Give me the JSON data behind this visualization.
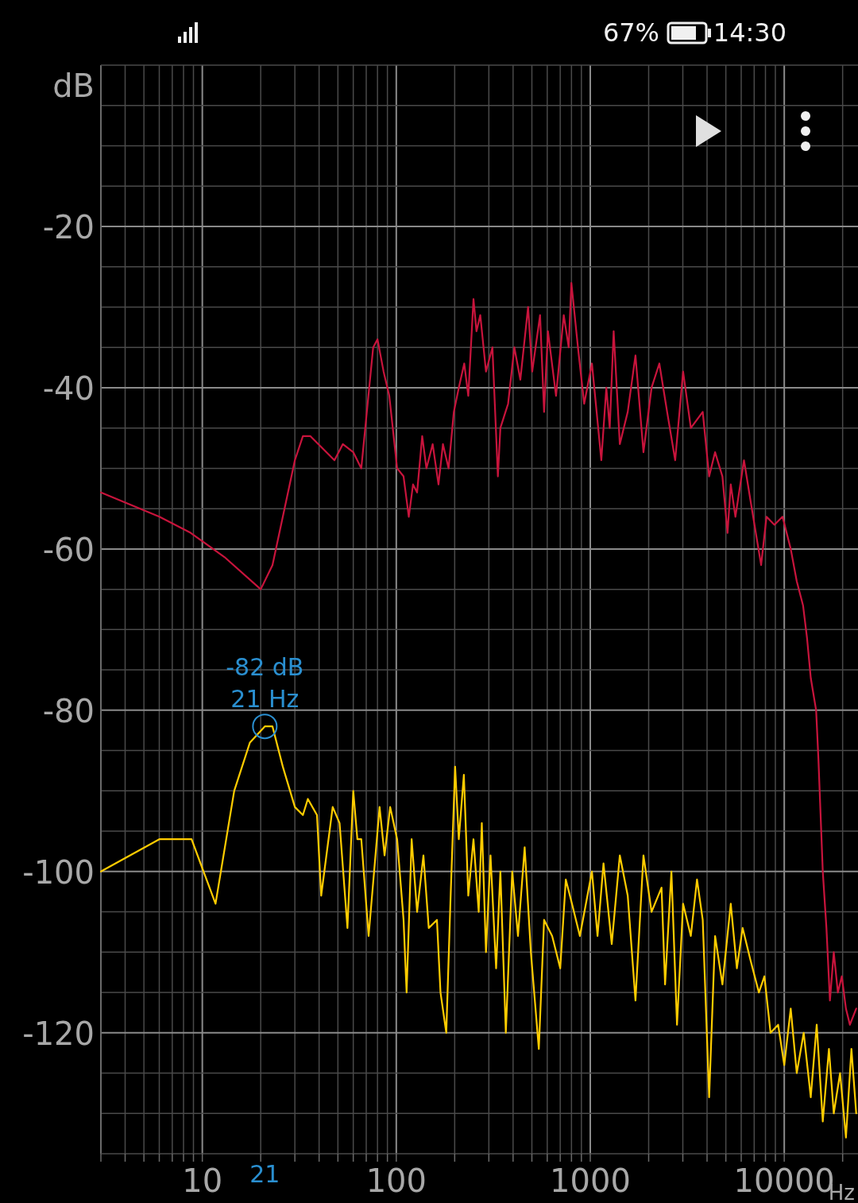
{
  "chart_data": {
    "type": "line",
    "xlabel": "Hz",
    "ylabel": "dB",
    "log": "x",
    "grid": true,
    "marker": "none",
    "line_style": "solid",
    "xlim": [
      3,
      24000
    ],
    "ylim": [
      -135,
      0
    ],
    "xticks": [
      {
        "value": 3,
        "label": null
      },
      {
        "value": 4,
        "label": null
      },
      {
        "value": 5,
        "label": null
      },
      {
        "value": 6,
        "label": null
      },
      {
        "value": 7,
        "label": null
      },
      {
        "value": 8,
        "label": null
      },
      {
        "value": 9,
        "label": null
      },
      10,
      {
        "value": 20,
        "label": null
      },
      {
        "value": 30,
        "label": null
      },
      {
        "value": 40,
        "label": null
      },
      {
        "value": 50,
        "label": null
      },
      {
        "value": 60,
        "label": null
      },
      {
        "value": 70,
        "label": null
      },
      {
        "value": 80,
        "label": null
      },
      {
        "value": 90,
        "label": null
      },
      100,
      {
        "value": 200,
        "label": null
      },
      {
        "value": 300,
        "label": null
      },
      {
        "value": 400,
        "label": null
      },
      {
        "value": 500,
        "label": null
      },
      {
        "value": 600,
        "label": null
      },
      {
        "value": 700,
        "label": null
      },
      {
        "value": 800,
        "label": null
      },
      {
        "value": 900,
        "label": null
      },
      1000,
      {
        "value": 2000,
        "label": null
      },
      {
        "value": 3000,
        "label": null
      },
      {
        "value": 4000,
        "label": null
      },
      {
        "value": 5000,
        "label": null
      },
      {
        "value": 6000,
        "label": null
      },
      {
        "value": 7000,
        "label": null
      },
      {
        "value": 8000,
        "label": null
      },
      {
        "value": 9000,
        "label": null
      },
      10000,
      {
        "value": 20000,
        "label": null
      }
    ],
    "yticks": [
      {
        "value": -5,
        "label": null
      },
      {
        "value": -10,
        "label": null
      },
      {
        "value": -15,
        "label": null
      },
      -20,
      {
        "value": -25,
        "label": null
      },
      {
        "value": -30,
        "label": null
      },
      {
        "value": -35,
        "label": null
      },
      -40,
      {
        "value": -45,
        "label": null
      },
      {
        "value": -50,
        "label": null
      },
      {
        "value": -55,
        "label": null
      },
      -60,
      {
        "value": -65,
        "label": null
      },
      {
        "value": -70,
        "label": null
      },
      {
        "value": -75,
        "label": null
      },
      -80,
      {
        "value": -85,
        "label": null
      },
      {
        "value": -90,
        "label": null
      },
      {
        "value": -95,
        "label": null
      },
      -100,
      {
        "value": -105,
        "label": null
      },
      {
        "value": -110,
        "label": null
      },
      {
        "value": -115,
        "label": null
      },
      -120,
      {
        "value": -125,
        "label": null
      },
      {
        "value": -130,
        "label": null
      }
    ],
    "series": [
      {
        "color": "#c8143c",
        "x": [
          3,
          6,
          8.7,
          13,
          20,
          23,
          30,
          33,
          36,
          48,
          53,
          60,
          66,
          76,
          80,
          86,
          92,
          101,
          109,
          116,
          122,
          128,
          136,
          143,
          154,
          165,
          174,
          186,
          198,
          210,
          224,
          235,
          250,
          259,
          271,
          290,
          313,
          334,
          344,
          377,
          406,
          436,
          478,
          502,
          551,
          578,
          605,
          666,
          730,
          774,
          799,
          864,
          930,
          1020,
          1140,
          1210,
          1260,
          1320,
          1420,
          1560,
          1710,
          1880,
          2070,
          2270,
          2490,
          2740,
          3010,
          3300,
          3800,
          4100,
          4400,
          4800,
          5100,
          5300,
          5600,
          6200,
          6700,
          7600,
          8100,
          8900,
          9800,
          10800,
          11600,
          12500,
          13100,
          13700,
          14600,
          15000,
          15800,
          16500,
          17200,
          18000,
          18900,
          19800,
          20800,
          21800,
          23500
        ],
        "values": [
          -53,
          -56,
          -58,
          -61,
          -65,
          -62,
          -49,
          -46,
          -46,
          -49,
          -47,
          -48,
          -50,
          -35,
          -34,
          -38,
          -41,
          -50,
          -51,
          -56,
          -52,
          -53,
          -46,
          -50,
          -47,
          -52,
          -47,
          -50,
          -43,
          -40,
          -37,
          -41,
          -29,
          -33,
          -31,
          -38,
          -35,
          -51,
          -45,
          -42,
          -35,
          -39,
          -30,
          -38,
          -31,
          -43,
          -33,
          -41,
          -31,
          -35,
          -27,
          -35,
          -42,
          -37,
          -49,
          -40,
          -45,
          -33,
          -47,
          -43,
          -36,
          -48,
          -40,
          -37,
          -43,
          -49,
          -38,
          -45,
          -43,
          -51,
          -48,
          -51,
          -58,
          -52,
          -56,
          -49,
          -54,
          -62,
          -56,
          -57,
          -56,
          -60,
          -64,
          -67,
          -71,
          -76,
          -80,
          -86,
          -100,
          -107,
          -116,
          -110,
          -115,
          -113,
          -117,
          -119,
          -117
        ]
      },
      {
        "color": "#ffcc00",
        "x": [
          3,
          6,
          8.8,
          11.7,
          14.6,
          17.6,
          21,
          23,
          26,
          30,
          33,
          35,
          39,
          41,
          47,
          51,
          56,
          60,
          63,
          66,
          72,
          82,
          87,
          93,
          101,
          109,
          113,
          120,
          128,
          138,
          147,
          162,
          169,
          181,
          190,
          201,
          210,
          223,
          235,
          250,
          266,
          276,
          290,
          306,
          327,
          344,
          367,
          396,
          424,
          459,
          494,
          543,
          578,
          636,
          700,
          748,
          805,
          884,
          1020,
          1090,
          1170,
          1290,
          1420,
          1560,
          1710,
          1880,
          2070,
          2330,
          2430,
          2620,
          2800,
          3010,
          3300,
          3550,
          3800,
          4100,
          4400,
          4800,
          5300,
          5700,
          6100,
          6700,
          7400,
          7900,
          8500,
          9300,
          10000,
          10800,
          11600,
          12600,
          13700,
          14700,
          15800,
          17000,
          18000,
          19400,
          20800,
          22200,
          23500
        ],
        "values": [
          -100,
          -96,
          -96,
          -104,
          -90,
          -84,
          -82,
          -82,
          -87,
          -92,
          -93,
          -91,
          -93,
          -103,
          -92,
          -94,
          -107,
          -90,
          -96,
          -96,
          -108,
          -92,
          -98,
          -92,
          -96,
          -106,
          -115,
          -96,
          -105,
          -98,
          -107,
          -106,
          -115,
          -120,
          -104,
          -87,
          -96,
          -88,
          -103,
          -96,
          -105,
          -94,
          -110,
          -98,
          -112,
          -100,
          -120,
          -100,
          -108,
          -97,
          -110,
          -122,
          -106,
          -108,
          -112,
          -101,
          -104,
          -108,
          -100,
          -108,
          -99,
          -109,
          -98,
          -103,
          -116,
          -98,
          -105,
          -102,
          -114,
          -100,
          -119,
          -104,
          -108,
          -101,
          -106,
          -128,
          -108,
          -114,
          -104,
          -112,
          -107,
          -111,
          -115,
          -113,
          -120,
          -119,
          -124,
          -117,
          -125,
          -120,
          -128,
          -119,
          -131,
          -122,
          -130,
          -125,
          -133,
          -122,
          -130
        ]
      }
    ],
    "annotations": [
      {
        "text": "-82 dB",
        "x": 21,
        "y": -82
      },
      {
        "text": "21 Hz",
        "x": 21,
        "y": -82
      },
      "21",
      "67%",
      "14:30"
    ]
  }
}
